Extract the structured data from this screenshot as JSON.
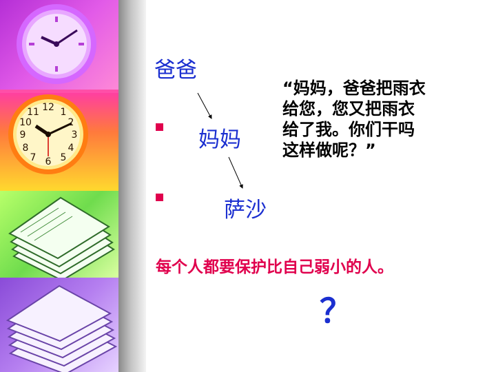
{
  "slide": {
    "dad": "爸爸",
    "mom": "妈妈",
    "sasha": "萨沙",
    "quote_lines": [
      "“妈妈，爸爸把雨衣",
      "给您，您又把雨衣",
      "给了我。你们干吗",
      "这样做呢？”"
    ],
    "moral": "每个人都要保护比自己弱小的人。",
    "question_mark": "？"
  },
  "colors": {
    "name_blue": "#1b2fd0",
    "accent_red": "#e0004d"
  },
  "sidebar": {
    "images": [
      "purple-clock-image",
      "orange-clock-image",
      "green-books-image",
      "purple-books-image"
    ]
  }
}
